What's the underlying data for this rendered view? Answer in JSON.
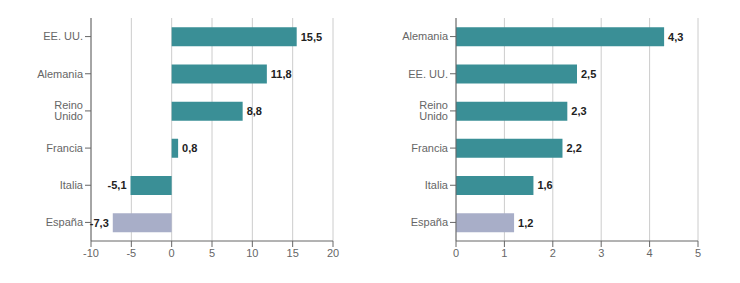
{
  "chart_data": [
    {
      "type": "bar",
      "orientation": "horizontal",
      "categories": [
        "EE. UU.",
        "Alemania",
        "Reino Unido",
        "Francia",
        "Italia",
        "España"
      ],
      "values": [
        15.5,
        11.8,
        8.8,
        0.8,
        -5.1,
        -7.3
      ],
      "value_labels": [
        "15,5",
        "11,8",
        "8,8",
        "0,8",
        "-5,1",
        "-7,3"
      ],
      "data_labels": true,
      "colors": [
        "#3a8f96",
        "#3a8f96",
        "#3a8f96",
        "#3a8f96",
        "#3a8f96",
        "#a8aec8"
      ],
      "xlim": [
        -10,
        20
      ],
      "xticks": [
        -10,
        -5,
        0,
        5,
        10,
        15,
        20
      ],
      "grid": true
    },
    {
      "type": "bar",
      "orientation": "horizontal",
      "categories": [
        "Alemania",
        "EE. UU.",
        "Reino Unido",
        "Francia",
        "Italia",
        "España"
      ],
      "values": [
        4.3,
        2.5,
        2.3,
        2.2,
        1.6,
        1.2
      ],
      "value_labels": [
        "4,3",
        "2,5",
        "2,3",
        "2,2",
        "1,6",
        "1,2"
      ],
      "data_labels": true,
      "colors": [
        "#3a8f96",
        "#3a8f96",
        "#3a8f96",
        "#3a8f96",
        "#3a8f96",
        "#a8aec8"
      ],
      "xlim": [
        0,
        5
      ],
      "xticks": [
        0,
        1,
        2,
        3,
        4,
        5
      ],
      "grid": true
    }
  ]
}
